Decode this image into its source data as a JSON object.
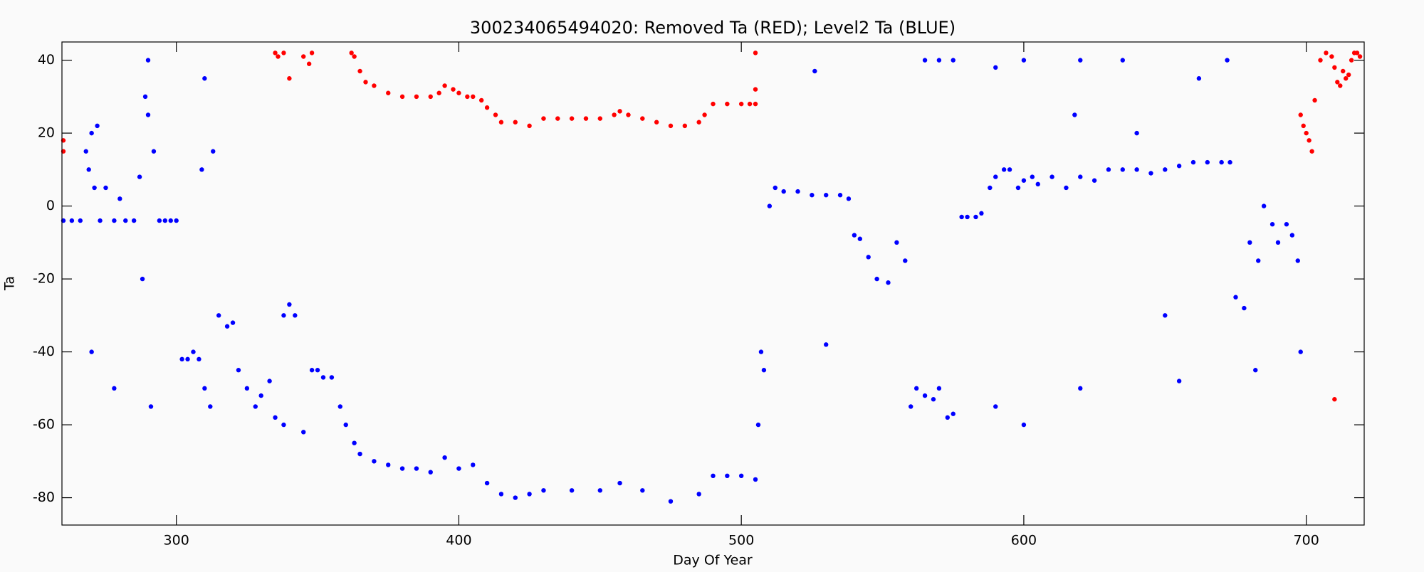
{
  "chart_data": {
    "type": "scatter",
    "title": "300234065494020: Removed Ta (RED); Level2 Ta (BLUE)",
    "x_label": "Day Of Year",
    "y_label": "Ta",
    "xlim": [
      259.5,
      720.5
    ],
    "ylim": [
      -87.5,
      45
    ],
    "xticks": [
      300,
      400,
      500,
      600,
      700
    ],
    "yticks": [
      -80,
      -60,
      -40,
      -20,
      0,
      20,
      40
    ],
    "series": [
      {
        "color": "#ff0000",
        "x": [
          260,
          260,
          335,
          336,
          338,
          340,
          345,
          347,
          348,
          362,
          363,
          365,
          367,
          370,
          375,
          380,
          385,
          390,
          393,
          395,
          398,
          400,
          403,
          405,
          408,
          410,
          413,
          415,
          420,
          425,
          430,
          435,
          440,
          445,
          450,
          455,
          457,
          460,
          465,
          470,
          475,
          480,
          485,
          487,
          490,
          495,
          500,
          503,
          505,
          505,
          505,
          698,
          699,
          700,
          701,
          702,
          703,
          705,
          707,
          709,
          710,
          711,
          712,
          713,
          714,
          715,
          716,
          717,
          718,
          719,
          710
        ],
        "y": [
          15,
          18,
          42,
          41,
          42,
          35,
          41,
          39,
          42,
          42,
          41,
          37,
          34,
          33,
          31,
          30,
          30,
          30,
          31,
          33,
          32,
          31,
          30,
          30,
          29,
          27,
          25,
          23,
          23,
          22,
          24,
          24,
          24,
          24,
          24,
          25,
          26,
          25,
          24,
          23,
          22,
          22,
          23,
          25,
          28,
          28,
          28,
          28,
          28,
          32,
          42,
          25,
          22,
          20,
          18,
          15,
          29,
          40,
          42,
          41,
          38,
          34,
          33,
          37,
          35,
          36,
          40,
          42,
          42,
          41,
          -53
        ]
      },
      {
        "color": "#0000ff",
        "x": [
          260,
          263,
          266,
          268,
          269,
          270,
          271,
          272,
          273,
          275,
          278,
          280,
          282,
          285,
          287,
          288,
          289,
          290,
          291,
          292,
          294,
          296,
          298,
          300,
          302,
          304,
          306,
          308,
          309,
          310,
          312,
          313,
          315,
          318,
          320,
          322,
          325,
          328,
          330,
          333,
          335,
          338,
          340,
          342,
          345,
          348,
          350,
          352,
          355,
          358,
          360,
          363,
          365,
          370,
          375,
          380,
          385,
          390,
          395,
          400,
          405,
          410,
          415,
          420,
          425,
          430,
          440,
          450,
          457,
          465,
          475,
          485,
          490,
          495,
          500,
          505,
          506,
          507,
          508,
          510,
          512,
          515,
          520,
          525,
          530,
          535,
          538,
          540,
          542,
          545,
          548,
          552,
          555,
          558,
          560,
          562,
          565,
          568,
          570,
          573,
          575,
          578,
          580,
          583,
          585,
          588,
          590,
          593,
          595,
          598,
          600,
          603,
          605,
          610,
          615,
          620,
          625,
          630,
          635,
          640,
          645,
          650,
          655,
          660,
          665,
          670,
          673,
          675,
          678,
          680,
          683,
          685,
          688,
          690,
          693,
          695,
          697,
          698,
          270,
          278,
          290,
          310,
          338,
          526,
          530,
          565,
          570,
          575,
          590,
          600,
          620,
          635,
          655,
          662,
          672,
          682,
          620,
          590,
          600,
          618,
          640,
          650
        ],
        "y": [
          -4,
          -4,
          -4,
          15,
          10,
          20,
          5,
          22,
          -4,
          5,
          -4,
          2,
          -4,
          -4,
          8,
          -20,
          30,
          25,
          -55,
          15,
          -4,
          -4,
          -4,
          -4,
          -42,
          -42,
          -40,
          -42,
          10,
          -50,
          -55,
          15,
          -30,
          -33,
          -32,
          -45,
          -50,
          -55,
          -52,
          -48,
          -58,
          -30,
          -27,
          -30,
          -62,
          -45,
          -45,
          -47,
          -47,
          -55,
          -60,
          -65,
          -68,
          -70,
          -71,
          -72,
          -72,
          -73,
          -69,
          -72,
          -71,
          -76,
          -79,
          -80,
          -79,
          -78,
          -78,
          -78,
          -76,
          -78,
          -81,
          -79,
          -74,
          -74,
          -74,
          -75,
          -60,
          -40,
          -45,
          0,
          5,
          4,
          4,
          3,
          3,
          3,
          2,
          -8,
          -9,
          -14,
          -20,
          -21,
          -10,
          -15,
          -55,
          -50,
          -52,
          -53,
          -50,
          -58,
          -57,
          -3,
          -3,
          -3,
          -2,
          5,
          8,
          10,
          10,
          5,
          7,
          8,
          6,
          8,
          5,
          8,
          7,
          10,
          10,
          10,
          9,
          10,
          11,
          12,
          12,
          12,
          12,
          -25,
          -28,
          -10,
          -15,
          0,
          -5,
          -10,
          -5,
          -8,
          -15,
          -40,
          -40,
          -50,
          40,
          35,
          -60,
          37,
          -38,
          40,
          40,
          40,
          38,
          40,
          40,
          40,
          -48,
          35,
          40,
          -45,
          -50,
          -55,
          -60,
          25,
          20,
          -30
        ]
      }
    ]
  }
}
